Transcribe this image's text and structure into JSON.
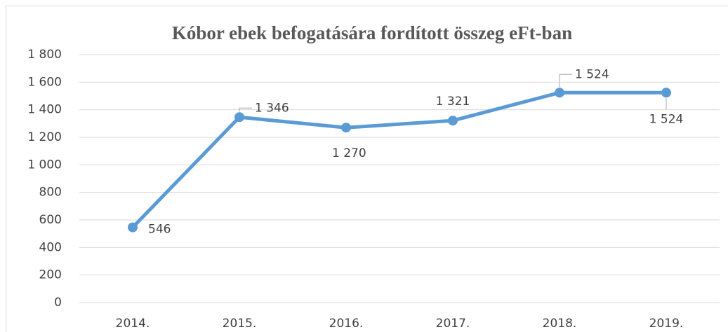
{
  "chart_data": {
    "type": "line",
    "title": "Kóbor ebek befogatására fordított összeg eFt-ban",
    "categories": [
      "2014.",
      "2015.",
      "2016.",
      "2017.",
      "2018.",
      "2019."
    ],
    "series": [
      {
        "name": "összeg",
        "color": "#5b9bd5",
        "values": [
          546,
          1346,
          1270,
          1321,
          1524,
          1524
        ],
        "value_labels": [
          "546",
          "1 346",
          "1 270",
          "1 321",
          "1 524",
          "1 524"
        ]
      }
    ],
    "ylim": [
      0,
      1800
    ],
    "yticks": [
      0,
      200,
      400,
      600,
      800,
      {
        "value": 1000,
        "label": "1 000"
      },
      {
        "value": 1200,
        "label": "1 200"
      },
      {
        "value": 1400,
        "label": "1 400"
      },
      {
        "value": 1600,
        "label": "1 600"
      },
      {
        "value": 1800,
        "label": "1 800"
      }
    ],
    "grid": true
  }
}
